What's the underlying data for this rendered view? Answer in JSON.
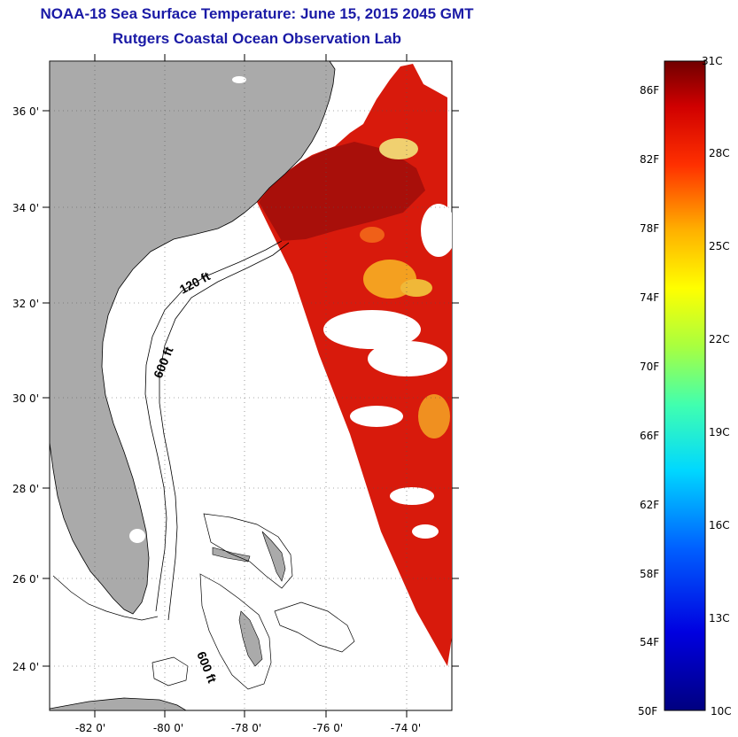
{
  "header": {
    "title": "NOAA-18 Sea Surface Temperature:  June 15, 2015 2045 GMT",
    "subtitle": "Rutgers Coastal Ocean Observation Lab"
  },
  "map": {
    "lat_labels": [
      "36 0'",
      "34 0'",
      "32 0'",
      "30 0'",
      "28 0'",
      "26 0'",
      "24 0'"
    ],
    "lon_labels": [
      "-82 0'",
      "-80 0'",
      "-78 0'",
      "-76 0'",
      "-74 0'"
    ],
    "contour_labels": [
      "120 ft",
      "600 ft",
      "600 ft"
    ]
  },
  "colorbar": {
    "fahrenheit": [
      "86F",
      "82F",
      "78F",
      "74F",
      "70F",
      "66F",
      "62F",
      "58F",
      "54F",
      "50F"
    ],
    "celsius": [
      "31C",
      "28C",
      "25C",
      "22C",
      "19C",
      "16C",
      "13C",
      "10C"
    ]
  },
  "colors": {
    "land": "#aaaaaa",
    "title": "#1a1aa6",
    "sst_warm": "#d81a0c",
    "sst_dark": "#a80f0a"
  }
}
